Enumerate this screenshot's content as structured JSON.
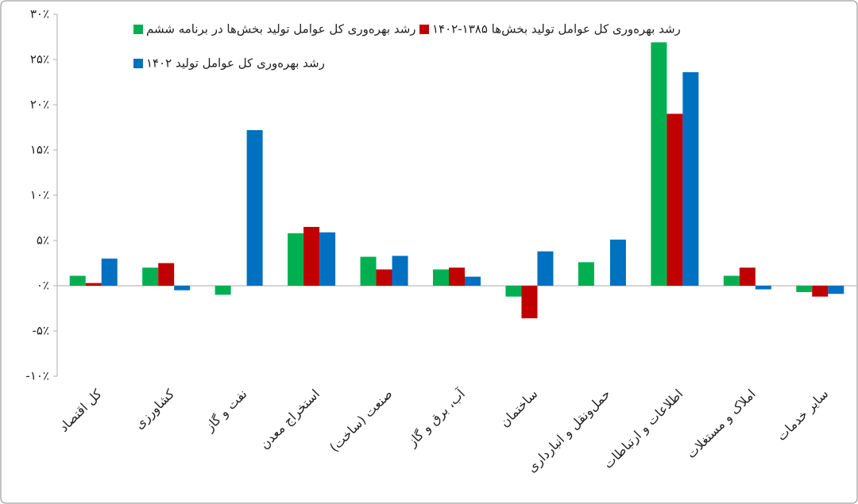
{
  "chart_data": {
    "type": "bar",
    "categories": [
      "کل اقتصاد",
      "کشاورزی",
      "نفت و گاز",
      "استخراج معدن",
      "صنعت (ساخت)",
      "آب، برق و گاز",
      "ساختمان",
      "حمل‌ونقل و انبارداری",
      "اطلاعات و ارتباطات",
      "املاک و مستغلات",
      "سایر خدمات"
    ],
    "series": [
      {
        "name": "رشد بهره‌وری کل عوامل تولید بخش‌ها در برنامه ششم",
        "color": "#00b050",
        "values": [
          1.1,
          2.0,
          -1.0,
          5.8,
          3.2,
          1.8,
          -1.2,
          2.6,
          26.9,
          1.1,
          -0.7
        ]
      },
      {
        "name": "رشد بهره‌وری کل عوامل تولید بخش‌ها ۱۳۸۵-۱۴۰۲",
        "color": "#c00000",
        "values": [
          0.3,
          2.5,
          0,
          6.5,
          1.8,
          2.0,
          -3.6,
          0,
          19.0,
          2.0,
          -1.2
        ]
      },
      {
        "name": "رشد بهره‌وری کل عوامل تولید ۱۴۰۲",
        "color": "#0070c0",
        "values": [
          3.0,
          -0.5,
          17.2,
          5.9,
          3.3,
          1.0,
          3.8,
          5.1,
          23.6,
          -0.4,
          -0.9
        ]
      }
    ],
    "ylim": [
      -10,
      30
    ],
    "yticks": [
      {
        "value": -10,
        "label": "-۱۰٪"
      },
      {
        "value": -5,
        "label": "-۵٪"
      },
      {
        "value": 0,
        "label": "۰٪"
      },
      {
        "value": 5,
        "label": "۵٪"
      },
      {
        "value": 10,
        "label": "۱۰٪"
      },
      {
        "value": 15,
        "label": "۱۵٪"
      },
      {
        "value": 20,
        "label": "۲۰٪"
      },
      {
        "value": 25,
        "label": "۲۵٪"
      },
      {
        "value": 30,
        "label": "۳۰٪"
      }
    ],
    "grid": false
  }
}
